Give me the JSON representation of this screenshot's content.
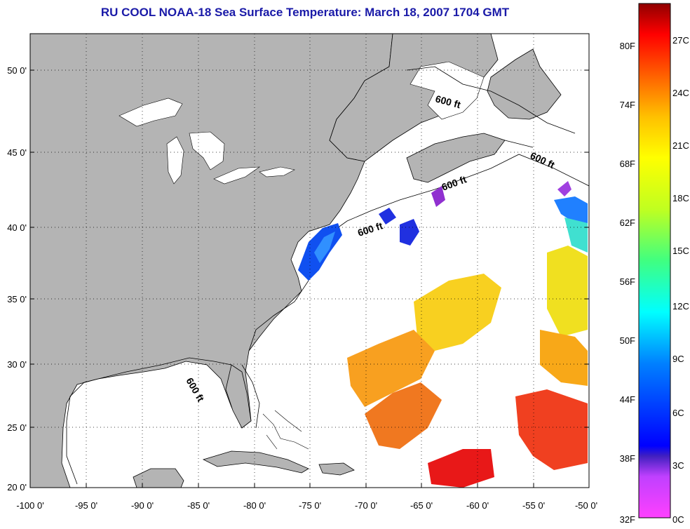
{
  "title": "RU COOL  NOAA-18  Sea Surface Temperature:  March 18, 2007 1704 GMT",
  "axes": {
    "lon_labels": [
      "-100 0'",
      "-95 0'",
      "-90 0'",
      "-85 0'",
      "-80 0'",
      "-75 0'",
      "-70 0'",
      "-65 0'",
      "-60 0'",
      "-55 0'",
      "-50 0'"
    ],
    "lat_labels": [
      "50 0'",
      "45 0'",
      "40 0'",
      "35 0'",
      "30 0'",
      "25 0'",
      "20 0'"
    ]
  },
  "contours": [
    {
      "label": "600 ft"
    },
    {
      "label": "600 ft"
    },
    {
      "label": "600 ft"
    },
    {
      "label": "600 ft"
    },
    {
      "label": "600 ft"
    }
  ],
  "colorbar": {
    "fahrenheit": [
      "80F",
      "74F",
      "68F",
      "62F",
      "56F",
      "50F",
      "44F",
      "38F",
      "32F"
    ],
    "celsius": [
      "27C",
      "24C",
      "21C",
      "18C",
      "15C",
      "12C",
      "9C",
      "6C",
      "3C",
      "0C"
    ]
  },
  "colors": {
    "land": "#b4b4b4",
    "ocean_no_data": "#ffffff",
    "title": "#1a1aa8"
  }
}
